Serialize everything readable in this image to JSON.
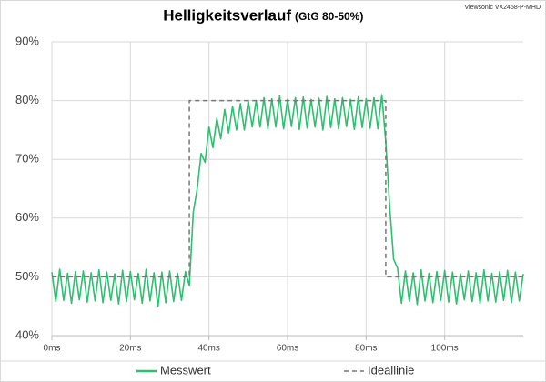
{
  "chart_data": {
    "type": "line",
    "title": "Helligkeitsverlauf",
    "subtitle": "(GtG 80-50%)",
    "note": "Viewsonic VX2458-P-MHD",
    "xlim": [
      0,
      120
    ],
    "xticks": [
      {
        "value": 0,
        "label": "0ms"
      },
      {
        "value": 20,
        "label": "20ms"
      },
      {
        "value": 40,
        "label": "40ms"
      },
      {
        "value": 60,
        "label": "60ms"
      },
      {
        "value": 80,
        "label": "80ms"
      },
      {
        "value": 100,
        "label": "100ms"
      }
    ],
    "ylim": [
      40,
      90
    ],
    "yticks": [
      {
        "value": 40,
        "label": "40%"
      },
      {
        "value": 50,
        "label": "50%"
      },
      {
        "value": 60,
        "label": "60%"
      },
      {
        "value": 70,
        "label": "70%"
      },
      {
        "value": 80,
        "label": "80%"
      },
      {
        "value": 90,
        "label": "90%"
      }
    ],
    "grid": true,
    "legend": "bottom",
    "series": [
      {
        "name": "Messwert",
        "color": "#2fbf71",
        "dash": false,
        "x": [
          0,
          1,
          2,
          3,
          4,
          5,
          6,
          7,
          8,
          9,
          10,
          11,
          12,
          13,
          14,
          15,
          16,
          17,
          18,
          19,
          20,
          21,
          22,
          23,
          24,
          25,
          26,
          27,
          28,
          29,
          30,
          31,
          32,
          33,
          34,
          35,
          36,
          37,
          38,
          39,
          40,
          41,
          42,
          43,
          44,
          45,
          46,
          47,
          48,
          49,
          50,
          51,
          52,
          53,
          54,
          55,
          56,
          57,
          58,
          59,
          60,
          61,
          62,
          63,
          64,
          65,
          66,
          67,
          68,
          69,
          70,
          71,
          72,
          73,
          74,
          75,
          76,
          77,
          78,
          79,
          80,
          81,
          82,
          83,
          84,
          85,
          86,
          87,
          88,
          89,
          90,
          91,
          92,
          93,
          94,
          95,
          96,
          97,
          98,
          99,
          100,
          101,
          102,
          103,
          104,
          105,
          106,
          107,
          108,
          109,
          110,
          111,
          112,
          113,
          114,
          115,
          116,
          117,
          118,
          119,
          120
        ],
        "values": [
          50.8,
          45.8,
          51.3,
          46.0,
          50.6,
          45.5,
          50.9,
          46.1,
          51.0,
          45.7,
          50.7,
          45.9,
          51.2,
          45.6,
          50.8,
          46.0,
          50.5,
          45.4,
          51.1,
          45.8,
          50.9,
          46.1,
          50.6,
          45.5,
          51.3,
          45.9,
          50.7,
          44.9,
          50.8,
          45.6,
          51.0,
          45.8,
          50.6,
          46.0,
          50.9,
          48.5,
          61,
          65,
          71,
          69.5,
          75.5,
          72,
          77,
          73.5,
          78.5,
          74.5,
          79,
          75,
          79.5,
          75,
          80,
          75.5,
          80,
          75.5,
          80.5,
          75.2,
          80.3,
          75.5,
          80.8,
          75.2,
          80.2,
          75.6,
          80.5,
          75.1,
          80.6,
          75.3,
          80.2,
          75.5,
          80.4,
          75.0,
          80.7,
          75.4,
          80.3,
          75.2,
          80.5,
          75.6,
          80.2,
          75.1,
          80.6,
          75.4,
          80.3,
          75.3,
          80.5,
          75.2,
          81,
          73,
          62,
          53,
          51.5,
          45.5,
          51.0,
          45.8,
          50.7,
          45.3,
          51.2,
          45.9,
          50.6,
          45.6,
          50.9,
          46.0,
          51.1,
          45.7,
          50.8,
          45.4,
          50.5,
          46.1,
          51.0,
          45.8,
          50.7,
          45.5,
          51.2,
          45.9,
          50.6,
          45.7,
          50.9,
          46.0,
          51.1,
          45.6,
          50.8,
          45.9,
          50.5
        ]
      },
      {
        "name": "Ideallinie",
        "color": "#777777",
        "dash": true,
        "x": [
          0,
          35,
          35,
          85,
          85,
          120
        ],
        "values": [
          50,
          50,
          80,
          80,
          50,
          50
        ]
      }
    ]
  }
}
